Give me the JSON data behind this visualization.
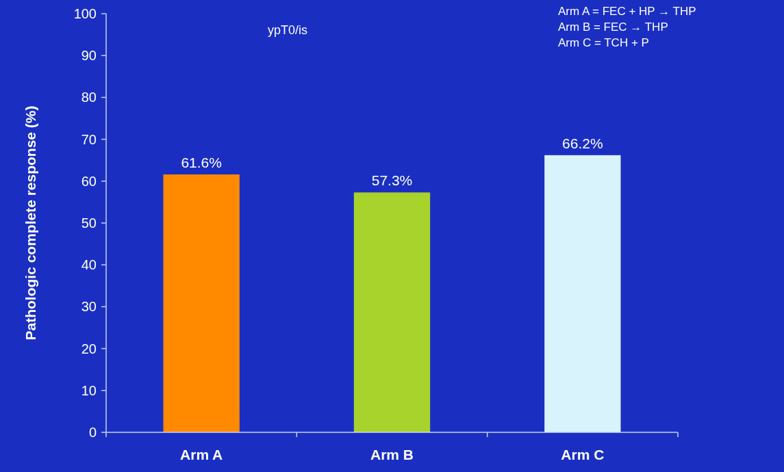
{
  "chart_data": {
    "type": "bar",
    "ylabel": "Pathologic complete response (%)",
    "categories": [
      "Arm A",
      "Arm B",
      "Arm C"
    ],
    "values": [
      61.6,
      57.3,
      66.2
    ],
    "colors": [
      "#ff8a00",
      "#a8d22c",
      "#d8f3fb"
    ],
    "value_labels": [
      "61.6%",
      "57.3%",
      "66.2%"
    ],
    "ylim": [
      0,
      100
    ],
    "yticks": [
      0,
      10,
      20,
      30,
      40,
      50,
      60,
      70,
      80,
      90,
      100
    ],
    "grid": false,
    "annotations": [
      "ypT0/is",
      "Arm A = FEC + HP → THP",
      "Arm B = FEC → THP",
      "Arm C = TCH + P"
    ]
  }
}
